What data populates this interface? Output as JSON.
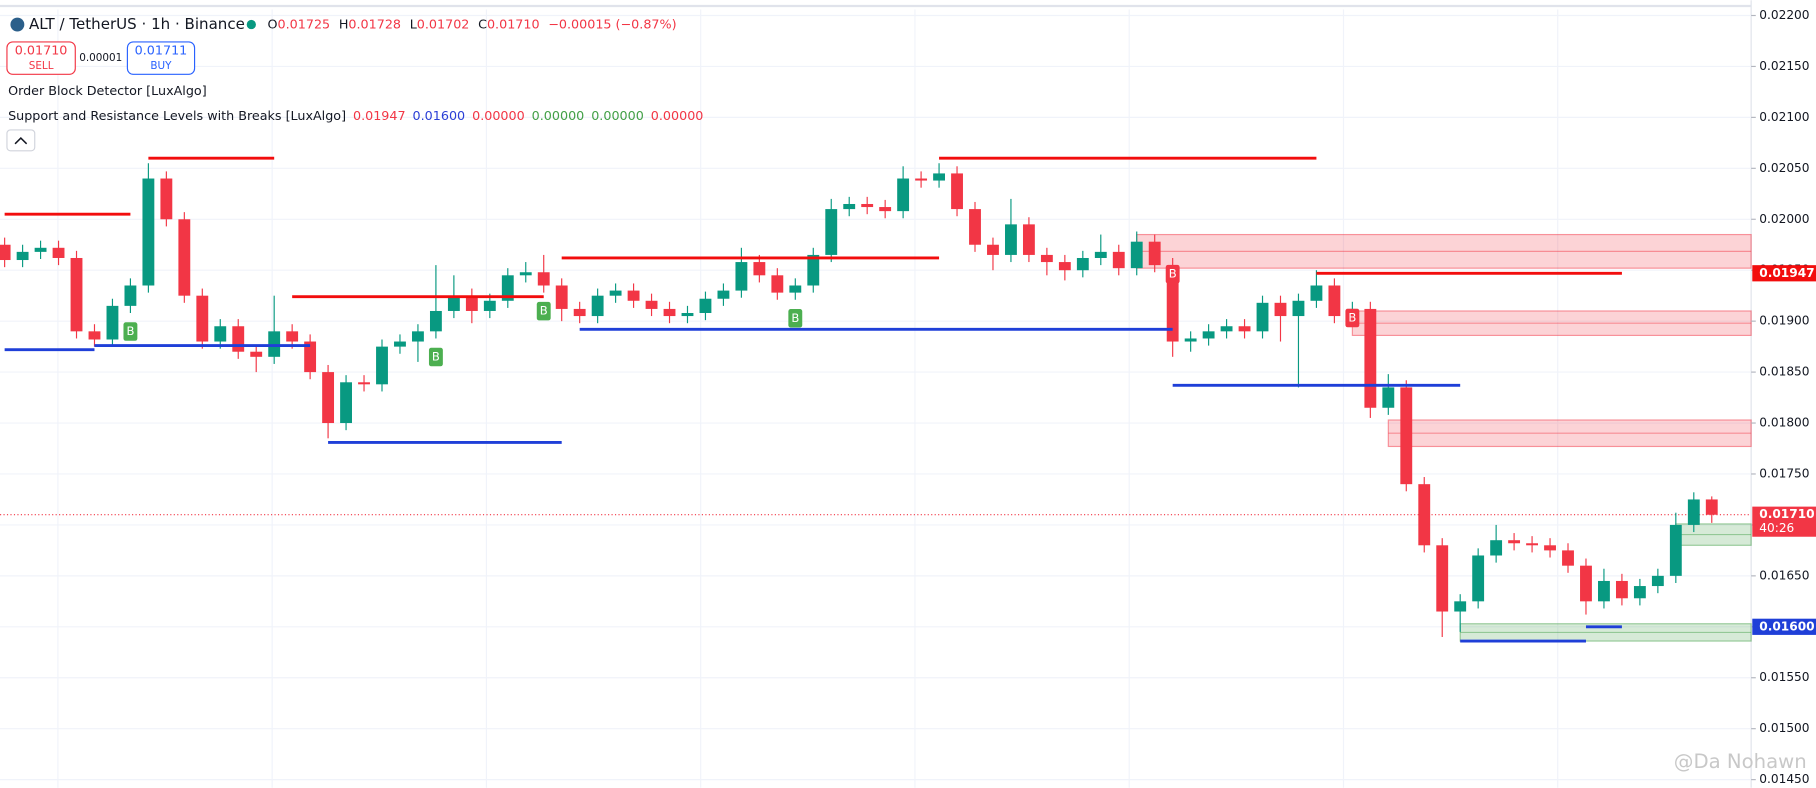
{
  "header": {
    "symbol": "ALT / TetherUS · 1h · Binance",
    "ohlc": [
      {
        "label": "O",
        "value": "0.01725"
      },
      {
        "label": "H",
        "value": "0.01728"
      },
      {
        "label": "L",
        "value": "0.01702"
      },
      {
        "label": "C",
        "value": "0.01710"
      }
    ],
    "change": "−0.00015 (−0.87%)"
  },
  "trade_panel": {
    "sell_price": "0.01710",
    "sell": "SELL",
    "spread": "0.00001",
    "buy_price": "0.01711",
    "buy": "BUY"
  },
  "indicators": [
    {
      "name": "Order Block Detector [LuxAlgo]"
    },
    {
      "name": "Support and Resistance Levels with Breaks [LuxAlgo]",
      "values": [
        {
          "text": "0.01947",
          "color": "#f23645"
        },
        {
          "text": "0.01600",
          "color": "#2a3fd6"
        },
        {
          "text": "0.00000",
          "color": "#f23645"
        },
        {
          "text": "0.00000",
          "color": "#43a047"
        },
        {
          "text": "0.00000",
          "color": "#43a047"
        },
        {
          "text": "0.00000",
          "color": "#f23645"
        }
      ]
    }
  ],
  "watermark": "@Da Nohawn",
  "chart_data": {
    "type": "candlestick",
    "up_color": "#089981",
    "down_color": "#f23645",
    "ylim": [
      0.01442,
      0.02215
    ],
    "yticks": [
      {
        "value": 0.022,
        "label": "0.02200"
      },
      {
        "value": 0.0215,
        "label": "0.02150"
      },
      {
        "value": 0.021,
        "label": "0.02100"
      },
      {
        "value": 0.0205,
        "label": "0.02050"
      },
      {
        "value": 0.02,
        "label": "0.02000"
      },
      {
        "value": 0.0195,
        "label": "0.01950"
      },
      {
        "value": 0.019,
        "label": "0.01900"
      },
      {
        "value": 0.0185,
        "label": "0.01850"
      },
      {
        "value": 0.018,
        "label": "0.01800"
      },
      {
        "value": 0.0175,
        "label": "0.01750"
      },
      {
        "value": 0.017,
        "label": "0.01700"
      },
      {
        "value": 0.0165,
        "label": "0.01650"
      },
      {
        "value": 0.016,
        "label": "0.01600"
      },
      {
        "value": 0.0155,
        "label": "0.01550"
      },
      {
        "value": 0.015,
        "label": "0.01500"
      },
      {
        "value": 0.0145,
        "label": "0.01450"
      }
    ],
    "grid": true,
    "candles": [
      [
        0.01975,
        0.01982,
        0.01953,
        0.0196
      ],
      [
        0.0196,
        0.01975,
        0.01953,
        0.01968
      ],
      [
        0.01968,
        0.01979,
        0.01961,
        0.01972
      ],
      [
        0.01972,
        0.01979,
        0.01955,
        0.01962
      ],
      [
        0.01962,
        0.01969,
        0.01883,
        0.0189
      ],
      [
        0.0189,
        0.01897,
        0.01875,
        0.01882
      ],
      [
        0.01882,
        0.01922,
        0.01875,
        0.01915
      ],
      [
        0.01915,
        0.01942,
        0.01908,
        0.01935
      ],
      [
        0.01935,
        0.02055,
        0.01928,
        0.0204
      ],
      [
        0.0204,
        0.02047,
        0.01993,
        0.02
      ],
      [
        0.02,
        0.02007,
        0.01918,
        0.01925
      ],
      [
        0.01925,
        0.01932,
        0.01873,
        0.0188
      ],
      [
        0.0188,
        0.01902,
        0.01873,
        0.01895
      ],
      [
        0.01895,
        0.01902,
        0.01863,
        0.0187
      ],
      [
        0.0187,
        0.01877,
        0.0185,
        0.01865
      ],
      [
        0.01865,
        0.01925,
        0.01858,
        0.0189
      ],
      [
        0.0189,
        0.01897,
        0.01873,
        0.0188
      ],
      [
        0.0188,
        0.01887,
        0.01843,
        0.0185
      ],
      [
        0.0185,
        0.01857,
        0.01785,
        0.018
      ],
      [
        0.018,
        0.01847,
        0.01793,
        0.0184
      ],
      [
        0.0184,
        0.01847,
        0.01831,
        0.01838
      ],
      [
        0.01838,
        0.01882,
        0.01831,
        0.01875
      ],
      [
        0.01875,
        0.01887,
        0.01868,
        0.0188
      ],
      [
        0.0188,
        0.01897,
        0.0186,
        0.0189
      ],
      [
        0.0189,
        0.01955,
        0.01883,
        0.0191
      ],
      [
        0.0191,
        0.01945,
        0.01903,
        0.01925
      ],
      [
        0.01925,
        0.01932,
        0.01898,
        0.0191
      ],
      [
        0.0191,
        0.01927,
        0.01903,
        0.0192
      ],
      [
        0.0192,
        0.01952,
        0.01913,
        0.01945
      ],
      [
        0.01945,
        0.01958,
        0.01938,
        0.01948
      ],
      [
        0.01948,
        0.01965,
        0.01928,
        0.01935
      ],
      [
        0.01935,
        0.01942,
        0.019,
        0.01912
      ],
      [
        0.01912,
        0.01919,
        0.01898,
        0.01905
      ],
      [
        0.01905,
        0.01932,
        0.01898,
        0.01925
      ],
      [
        0.01925,
        0.01937,
        0.01918,
        0.0193
      ],
      [
        0.0193,
        0.01937,
        0.01913,
        0.0192
      ],
      [
        0.0192,
        0.01927,
        0.01905,
        0.01912
      ],
      [
        0.01912,
        0.01919,
        0.01898,
        0.01905
      ],
      [
        0.01905,
        0.01915,
        0.01898,
        0.01908
      ],
      [
        0.01908,
        0.01929,
        0.01901,
        0.01922
      ],
      [
        0.01922,
        0.01937,
        0.01915,
        0.0193
      ],
      [
        0.0193,
        0.01972,
        0.01923,
        0.01958
      ],
      [
        0.01958,
        0.01965,
        0.01938,
        0.01945
      ],
      [
        0.01945,
        0.01952,
        0.01921,
        0.01928
      ],
      [
        0.01928,
        0.01942,
        0.01921,
        0.01935
      ],
      [
        0.01935,
        0.01972,
        0.01928,
        0.01965
      ],
      [
        0.01965,
        0.0202,
        0.01958,
        0.0201
      ],
      [
        0.0201,
        0.02022,
        0.02003,
        0.02015
      ],
      [
        0.02015,
        0.02022,
        0.02005,
        0.02012
      ],
      [
        0.02012,
        0.02019,
        0.02001,
        0.02008
      ],
      [
        0.02008,
        0.02052,
        0.02001,
        0.0204
      ],
      [
        0.0204,
        0.02047,
        0.02031,
        0.02038
      ],
      [
        0.02038,
        0.02055,
        0.02031,
        0.02045
      ],
      [
        0.02045,
        0.02052,
        0.02003,
        0.0201
      ],
      [
        0.0201,
        0.02017,
        0.01968,
        0.01975
      ],
      [
        0.01975,
        0.01982,
        0.0195,
        0.01965
      ],
      [
        0.01965,
        0.0202,
        0.01958,
        0.01995
      ],
      [
        0.01995,
        0.02002,
        0.01958,
        0.01965
      ],
      [
        0.01965,
        0.01972,
        0.01945,
        0.01958
      ],
      [
        0.01958,
        0.01965,
        0.0194,
        0.0195
      ],
      [
        0.0195,
        0.01969,
        0.01943,
        0.01962
      ],
      [
        0.01962,
        0.01985,
        0.01955,
        0.01968
      ],
      [
        0.01968,
        0.01975,
        0.01945,
        0.01952
      ],
      [
        0.01952,
        0.01988,
        0.01945,
        0.01978
      ],
      [
        0.01978,
        0.01985,
        0.01948,
        0.01955
      ],
      [
        0.01955,
        0.01962,
        0.01865,
        0.0188
      ],
      [
        0.0188,
        0.0189,
        0.0187,
        0.01883
      ],
      [
        0.01883,
        0.01897,
        0.01876,
        0.0189
      ],
      [
        0.0189,
        0.01902,
        0.01883,
        0.01895
      ],
      [
        0.01895,
        0.01902,
        0.01883,
        0.0189
      ],
      [
        0.0189,
        0.01925,
        0.01883,
        0.01918
      ],
      [
        0.01918,
        0.01925,
        0.0188,
        0.01905
      ],
      [
        0.01905,
        0.01927,
        0.01835,
        0.0192
      ],
      [
        0.0192,
        0.0195,
        0.01913,
        0.01935
      ],
      [
        0.01935,
        0.01942,
        0.01898,
        0.01905
      ],
      [
        0.01905,
        0.01919,
        0.01895,
        0.01912
      ],
      [
        0.01912,
        0.01919,
        0.01805,
        0.01815
      ],
      [
        0.01815,
        0.01848,
        0.01808,
        0.01835
      ],
      [
        0.01835,
        0.01842,
        0.01733,
        0.0174
      ],
      [
        0.0174,
        0.01747,
        0.01673,
        0.0168
      ],
      [
        0.0168,
        0.01687,
        0.0159,
        0.01615
      ],
      [
        0.01615,
        0.01632,
        0.01595,
        0.01625
      ],
      [
        0.01625,
        0.01677,
        0.01618,
        0.0167
      ],
      [
        0.0167,
        0.017,
        0.01663,
        0.01685
      ],
      [
        0.01685,
        0.01692,
        0.01675,
        0.01682
      ],
      [
        0.01682,
        0.01689,
        0.01673,
        0.0168
      ],
      [
        0.0168,
        0.01687,
        0.01668,
        0.01675
      ],
      [
        0.01675,
        0.01682,
        0.01653,
        0.0166
      ],
      [
        0.0166,
        0.01667,
        0.01612,
        0.01625
      ],
      [
        0.01625,
        0.01657,
        0.01618,
        0.01645
      ],
      [
        0.01645,
        0.01652,
        0.01621,
        0.01628
      ],
      [
        0.01628,
        0.01647,
        0.01621,
        0.0164
      ],
      [
        0.0164,
        0.01657,
        0.01633,
        0.0165
      ],
      [
        0.0165,
        0.01712,
        0.01643,
        0.017
      ],
      [
        0.017,
        0.01732,
        0.01693,
        0.01725
      ],
      [
        0.01725,
        0.01728,
        0.01702,
        0.0171
      ]
    ],
    "levels": [
      {
        "value": 0.02005,
        "from": 0,
        "to": 7,
        "color": "#f20d0d"
      },
      {
        "value": 0.0206,
        "from": 8,
        "to": 15,
        "color": "#f20d0d"
      },
      {
        "value": 0.01924,
        "from": 16,
        "to": 30,
        "color": "#f20d0d"
      },
      {
        "value": 0.01962,
        "from": 31,
        "to": 52,
        "color": "#f20d0d"
      },
      {
        "value": 0.0206,
        "from": 52,
        "to": 73,
        "color": "#f20d0d"
      },
      {
        "value": 0.01947,
        "from": 73,
        "to": 90,
        "color": "#f20d0d"
      },
      {
        "value": 0.01872,
        "from": 0,
        "to": 5,
        "color": "#1f3fd8"
      },
      {
        "value": 0.01876,
        "from": 5,
        "to": 17,
        "color": "#1f3fd8"
      },
      {
        "value": 0.01781,
        "from": 18,
        "to": 31,
        "color": "#1f3fd8"
      },
      {
        "value": 0.01892,
        "from": 32,
        "to": 65,
        "color": "#1f3fd8"
      },
      {
        "value": 0.01837,
        "from": 65,
        "to": 81,
        "color": "#1f3fd8"
      },
      {
        "value": 0.01586,
        "from": 81,
        "to": 88,
        "color": "#1f3fd8"
      },
      {
        "value": 0.016,
        "from": 88,
        "to": 90,
        "color": "#1f3fd8"
      }
    ],
    "order_blocks": [
      {
        "top": 0.01985,
        "bottom": 0.01952,
        "from": 63,
        "color": "#f23645"
      },
      {
        "top": 0.0191,
        "bottom": 0.01886,
        "from": 75,
        "color": "#f23645"
      },
      {
        "top": 0.01803,
        "bottom": 0.01777,
        "from": 77,
        "color": "#f23645"
      },
      {
        "top": 0.01701,
        "bottom": 0.0168,
        "from": 93,
        "color": "#43a047"
      },
      {
        "top": 0.01603,
        "bottom": 0.01586,
        "from": 81,
        "color": "#43a047"
      }
    ],
    "signals": [
      {
        "text": "B",
        "index": 7,
        "color": "#4caf50"
      },
      {
        "text": "B",
        "index": 24,
        "color": "#4caf50"
      },
      {
        "text": "B",
        "index": 30,
        "color": "#4caf50"
      },
      {
        "text": "B",
        "index": 44,
        "color": "#4caf50"
      },
      {
        "text": "B",
        "index": 65,
        "color": "#f23645"
      },
      {
        "text": "B",
        "index": 75,
        "color": "#f23645"
      }
    ],
    "price_labels": [
      {
        "value": 0.01947,
        "label": "0.01947",
        "color": "#f20d0d"
      },
      {
        "value": 0.016,
        "label": "0.01600",
        "color": "#1f3fd8"
      }
    ],
    "last_price": {
      "value": 0.0171,
      "label": "0.01710",
      "countdown": "40:26",
      "color": "#f23645"
    }
  }
}
